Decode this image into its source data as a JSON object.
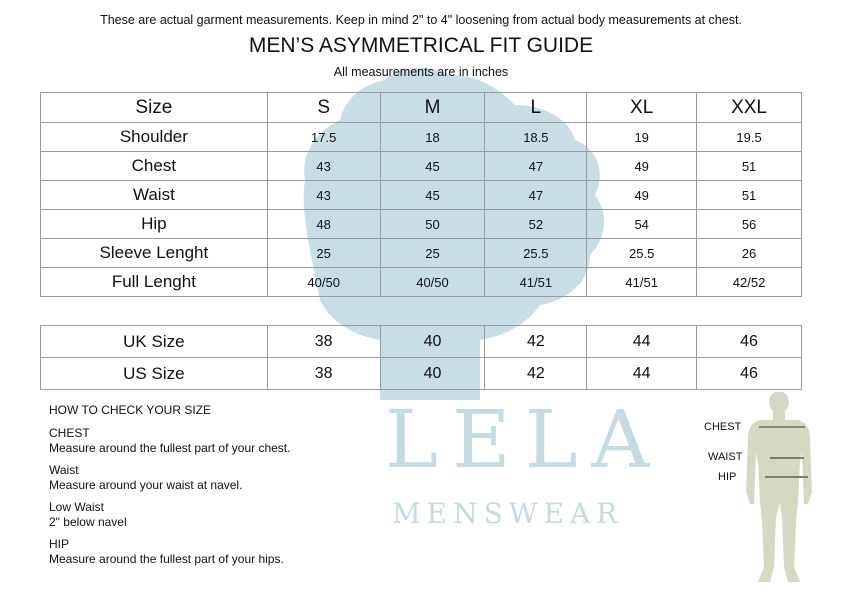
{
  "header": {
    "note": "These are actual garment measurements. Keep in mind 2\" to 4\" loosening from actual body measurements  at chest.",
    "title": "MEN’S ASYMMETRICAL FIT GUIDE",
    "subtitle": "All measurements are in inches"
  },
  "size_table": {
    "header": [
      "Size",
      "S",
      "M",
      "L",
      "XL",
      "XXL"
    ],
    "rows": [
      {
        "label": "Shoulder",
        "values": [
          "17.5",
          "18",
          "18.5",
          "19",
          "19.5"
        ]
      },
      {
        "label": "Chest",
        "values": [
          "43",
          "45",
          "47",
          "49",
          "51"
        ]
      },
      {
        "label": "Waist",
        "values": [
          "43",
          "45",
          "47",
          "49",
          "51"
        ]
      },
      {
        "label": "Hip",
        "values": [
          "48",
          "50",
          "52",
          "54",
          "56"
        ]
      },
      {
        "label": "Sleeve Lenght",
        "values": [
          "25",
          "25",
          "25.5",
          "25.5",
          "26"
        ]
      },
      {
        "label": "Full Lenght",
        "values": [
          "40/50",
          "40/50",
          "41/51",
          "41/51",
          "42/52"
        ]
      }
    ]
  },
  "conversion_table": {
    "rows": [
      {
        "label": "UK Size",
        "values": [
          "38",
          "40",
          "42",
          "44",
          "46"
        ]
      },
      {
        "label": "US Size",
        "values": [
          "38",
          "40",
          "42",
          "44",
          "46"
        ]
      }
    ]
  },
  "how_to": {
    "title": "HOW TO CHECK YOUR SIZE",
    "items": [
      {
        "name": "CHEST",
        "text": "Measure around the fullest part of your chest."
      },
      {
        "name": "Waist",
        "text": "Measure around your waist at navel."
      },
      {
        "name": "Low Waist",
        "text": "2\" below navel"
      },
      {
        "name": "HIP",
        "text": "Measure around the fullest part of your hips."
      }
    ]
  },
  "figure": {
    "labels": {
      "chest": "CHEST",
      "waist": "WAIST",
      "hip": "HIP"
    }
  },
  "watermark": {
    "line1": "LELA",
    "line2": "MENSWEAR",
    "color": "#c5dae3"
  }
}
